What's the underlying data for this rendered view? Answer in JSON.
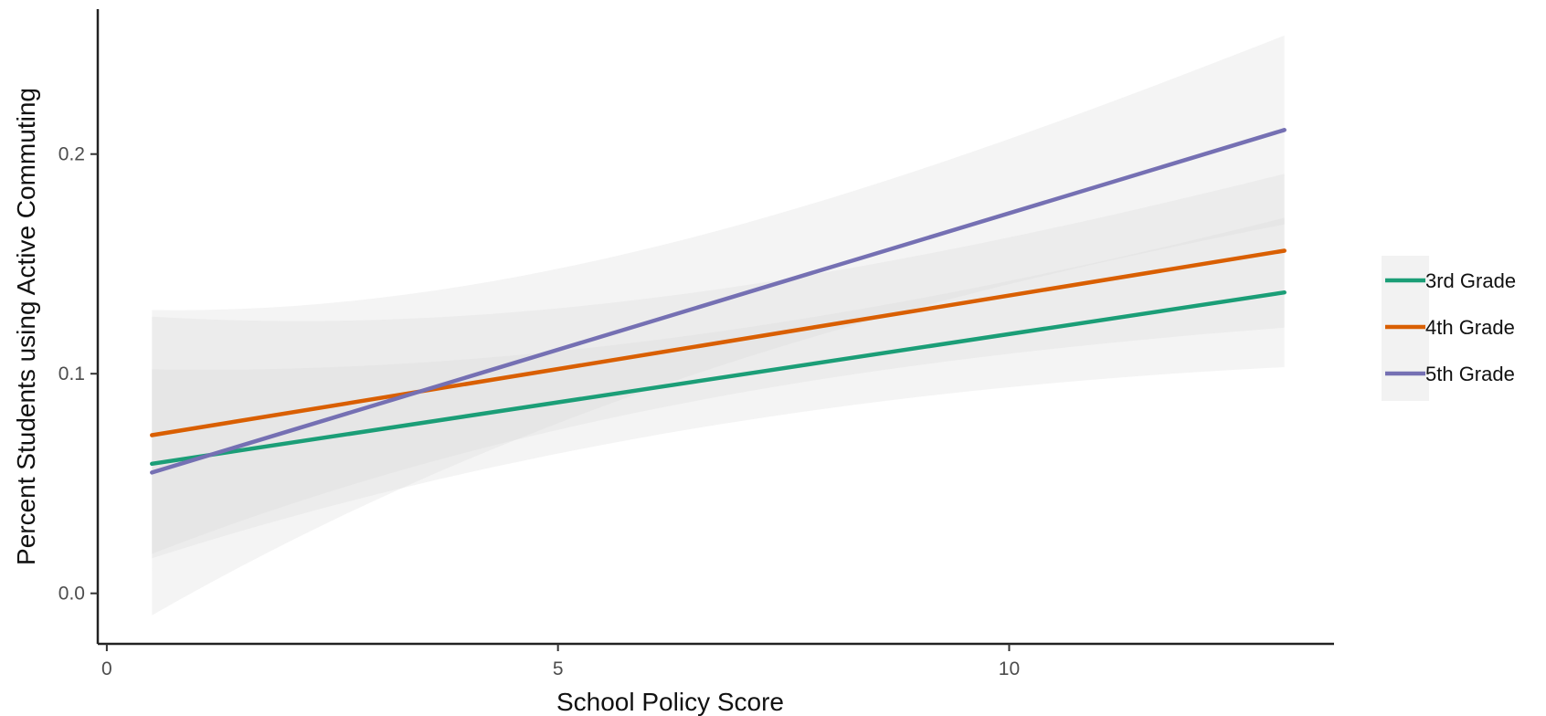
{
  "chart_data": {
    "type": "line",
    "title": "",
    "xlabel": "School Policy Score",
    "ylabel": "Percent Students using Active Commuting",
    "xlim": [
      -0.1,
      13.6
    ],
    "ylim": [
      -0.023,
      0.266
    ],
    "x_ticks": [
      0,
      5,
      10
    ],
    "x_tick_labels": [
      "0",
      "5",
      "10"
    ],
    "y_ticks": [
      0.0,
      0.1,
      0.2
    ],
    "y_tick_labels": [
      "0.0",
      "0.1",
      "0.2"
    ],
    "grid": false,
    "legend_position": "right",
    "confidence_bands": true,
    "series": [
      {
        "name": "3rd Grade",
        "color": "#1b9e77",
        "x": [
          0.5,
          13.05
        ],
        "y": [
          0.059,
          0.137
        ],
        "ci_lower": [
          0.016,
          0.103
        ],
        "ci_upper": [
          0.102,
          0.171
        ]
      },
      {
        "name": "4th Grade",
        "color": "#d95f02",
        "x": [
          0.5,
          13.05
        ],
        "y": [
          0.072,
          0.156
        ],
        "ci_lower": [
          0.018,
          0.121
        ],
        "ci_upper": [
          0.126,
          0.191
        ]
      },
      {
        "name": "5th Grade",
        "color": "#7570b3",
        "x": [
          0.5,
          13.05
        ],
        "y": [
          0.055,
          0.211
        ],
        "ci_lower": [
          -0.01,
          0.168
        ],
        "ci_upper": [
          0.129,
          0.254
        ]
      }
    ]
  }
}
